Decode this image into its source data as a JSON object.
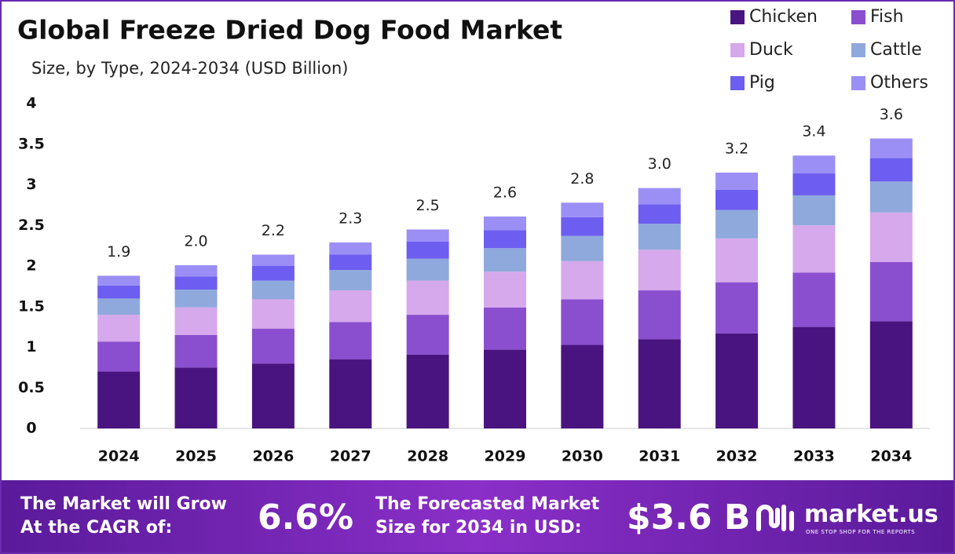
{
  "chart_data": {
    "type": "stacked-bar",
    "title": "Global Freeze Dried Dog Food Market",
    "subtitle": "Size, by Type, 2024-2034 (USD Billion)",
    "categories": [
      "2024",
      "2025",
      "2026",
      "2027",
      "2028",
      "2029",
      "2030",
      "2031",
      "2032",
      "2033",
      "2034"
    ],
    "series": [
      {
        "name": "Chicken",
        "color": "#4a1480",
        "values": [
          0.7,
          0.75,
          0.8,
          0.85,
          0.91,
          0.97,
          1.03,
          1.1,
          1.17,
          1.25,
          1.32
        ]
      },
      {
        "name": "Fish",
        "color": "#8a4fcf",
        "values": [
          0.37,
          0.4,
          0.43,
          0.46,
          0.49,
          0.52,
          0.56,
          0.6,
          0.63,
          0.67,
          0.73
        ]
      },
      {
        "name": "Duck",
        "color": "#d6a8ec",
        "values": [
          0.33,
          0.34,
          0.36,
          0.39,
          0.42,
          0.44,
          0.47,
          0.5,
          0.54,
          0.58,
          0.61
        ]
      },
      {
        "name": "Cattle",
        "color": "#8fa9dc",
        "values": [
          0.2,
          0.22,
          0.23,
          0.25,
          0.27,
          0.29,
          0.31,
          0.32,
          0.35,
          0.37,
          0.38
        ]
      },
      {
        "name": "Pig",
        "color": "#6d5df0",
        "values": [
          0.16,
          0.16,
          0.18,
          0.19,
          0.21,
          0.22,
          0.23,
          0.24,
          0.25,
          0.27,
          0.29
        ]
      },
      {
        "name": "Others",
        "color": "#9b8ff5",
        "values": [
          0.12,
          0.14,
          0.14,
          0.15,
          0.15,
          0.17,
          0.18,
          0.2,
          0.21,
          0.22,
          0.24
        ]
      }
    ],
    "totals": {
      "values": [
        1.9,
        2.0,
        2.2,
        2.3,
        2.5,
        2.6,
        2.8,
        3.0,
        3.2,
        3.4,
        3.6
      ],
      "value_labels": [
        "1.9",
        "2.0",
        "2.2",
        "2.3",
        "2.5",
        "2.6",
        "2.8",
        "3.0",
        "3.2",
        "3.4",
        "3.6"
      ]
    },
    "ylim": [
      0,
      4
    ],
    "yticks": [
      0,
      0.5,
      1,
      1.5,
      2,
      2.5,
      3,
      3.5,
      4
    ],
    "legend": "top-right",
    "grid": false
  },
  "footer": {
    "cagr_text": [
      "The Market will Grow",
      "At the CAGR of:"
    ],
    "cagr": "6.6%",
    "forecast_text": [
      "The Forecasted Market",
      "Size for 2034 in USD:"
    ],
    "forecast": "$3.6 B",
    "brand": "market.us",
    "tagline": "ONE STOP SHOP FOR THE REPORTS"
  }
}
